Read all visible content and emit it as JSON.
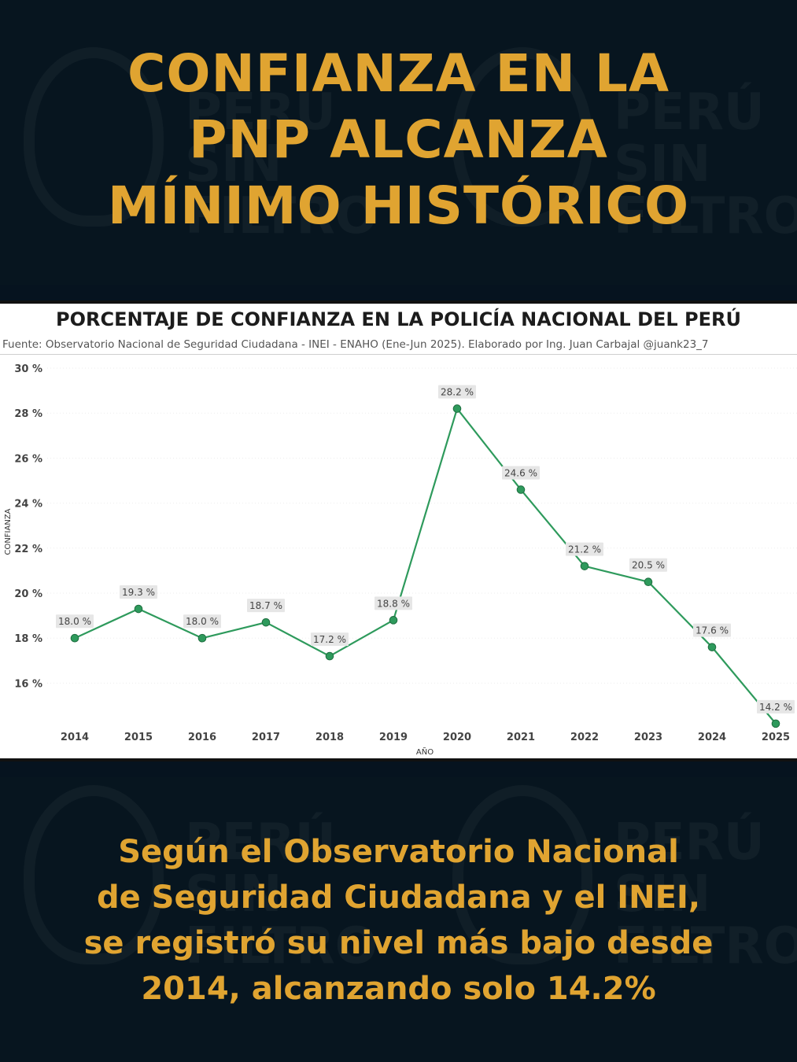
{
  "headline": {
    "line1": "CONFIANZA EN LA",
    "line2": "PNP ALCANZA",
    "line3": "MÍNIMO HISTÓRICO"
  },
  "watermark": {
    "line1": "PERÚ",
    "line2": "SIN",
    "line3": "FILTRO"
  },
  "caption": {
    "line1": "Según el Observatorio Nacional",
    "line2": "de Seguridad Ciudadana y el INEI,",
    "line3": "se registró su nivel más bajo desde",
    "line4": "2014, alcanzando solo 14.2%"
  },
  "colors": {
    "background": "#07151f",
    "accent": "#e0a431",
    "line": "#2e9a5c",
    "label_bg": "#e6e6e6"
  },
  "chart_data": {
    "type": "line",
    "title": "PORCENTAJE DE CONFIANZA EN LA POLICÍA NACIONAL DEL PERÚ",
    "source": "Fuente: Observatorio Nacional de Seguridad Ciudadana - INEI - ENAHO (Ene-Jun 2025). Elaborado por Ing. Juan Carbajal @juank23_7",
    "xlabel": "AÑO",
    "ylabel": "CONFIANZA",
    "categories": [
      "2014",
      "2015",
      "2016",
      "2017",
      "2018",
      "2019",
      "2020",
      "2021",
      "2022",
      "2023",
      "2024",
      "2025"
    ],
    "values": [
      18.0,
      19.3,
      18.0,
      18.7,
      17.2,
      18.8,
      28.2,
      24.6,
      21.2,
      20.5,
      17.6,
      14.2
    ],
    "data_labels": [
      "18.0 %",
      "19.3 %",
      "18.0 %",
      "18.7 %",
      "17.2 %",
      "18.8 %",
      "28.2 %",
      "24.6 %",
      "21.2 %",
      "20.5 %",
      "17.6 %",
      "14.2 %"
    ],
    "y_ticks": [
      16,
      18,
      20,
      22,
      24,
      26,
      28,
      30
    ],
    "y_tick_labels": [
      "16 %",
      "18 %",
      "20 %",
      "22 %",
      "24 %",
      "26 %",
      "28 %",
      "30 %"
    ],
    "ylim": [
      14.2,
      30
    ],
    "grid": true,
    "legend": "none"
  }
}
